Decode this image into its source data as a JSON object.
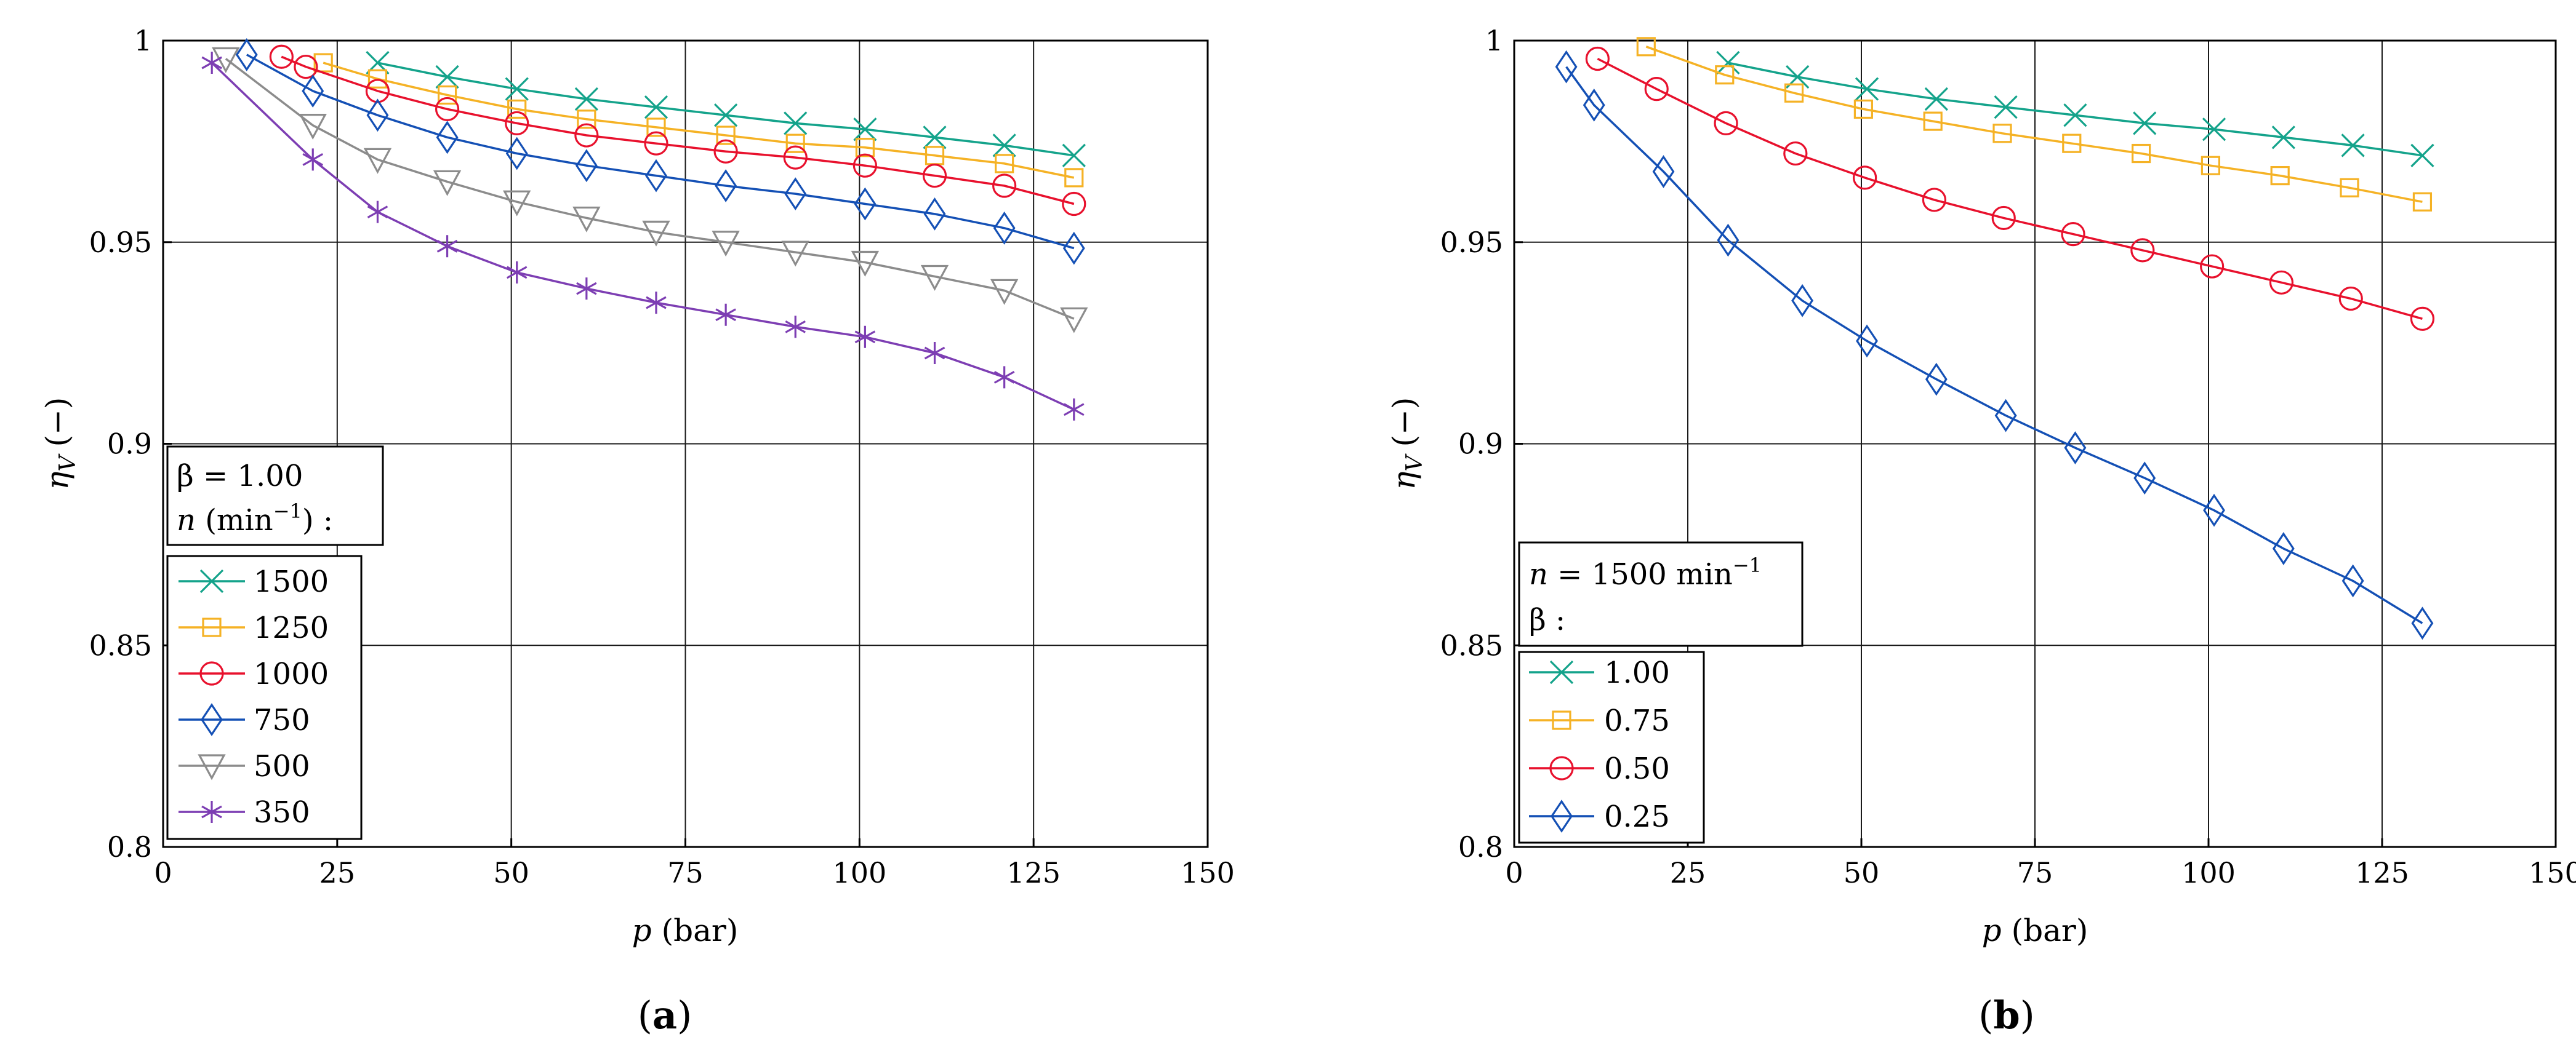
{
  "chart_data": [
    {
      "type": "line",
      "subfig_prefix": "(",
      "subfig_letter": "a",
      "subfig_suffix": ")",
      "xlabel_var": "p",
      "xlabel_unit": "(bar)",
      "ylabel_var": "η",
      "ylabel_sub": "V",
      "ylabel_unit": "(−)",
      "xlim": [
        0,
        150
      ],
      "ylim": [
        0.8,
        1.0
      ],
      "xticks": [
        0,
        25,
        50,
        75,
        100,
        125,
        150
      ],
      "xtick_labels": [
        "0",
        "25",
        "50",
        "75",
        "100",
        "125",
        "150"
      ],
      "yticks": [
        0.8,
        0.85,
        0.9,
        0.95,
        1.0
      ],
      "ytick_labels": [
        "0.8",
        "0.85",
        "0.9",
        "0.95",
        "1"
      ],
      "grid": true,
      "legend_position": "bottom-left",
      "legend_header_line1": "β = 1.00",
      "legend_header_line2_var": "n",
      "legend_header_line2_unit": "(min",
      "legend_header_line2_exp": "−1",
      "legend_header_line2_end": ") :",
      "series": [
        {
          "name": "1500",
          "color": "#14a38b",
          "marker": "x",
          "x": [
            30.8,
            40.8,
            50.8,
            60.8,
            70.8,
            80.8,
            90.8,
            100.8,
            110.8,
            120.8,
            130.8
          ],
          "y": [
            0.9945,
            0.991,
            0.988,
            0.9855,
            0.9835,
            0.9815,
            0.9795,
            0.978,
            0.976,
            0.974,
            0.9715
          ]
        },
        {
          "name": "1250",
          "color": "#f5b225",
          "marker": "square",
          "x": [
            23.0,
            30.8,
            40.8,
            50.8,
            60.8,
            70.8,
            80.8,
            90.8,
            100.8,
            110.8,
            120.8,
            130.8
          ],
          "y": [
            0.9945,
            0.9905,
            0.9865,
            0.983,
            0.9805,
            0.9785,
            0.9765,
            0.9745,
            0.9735,
            0.9715,
            0.9695,
            0.966
          ]
        },
        {
          "name": "1000",
          "color": "#e8112d",
          "marker": "circle",
          "x": [
            17.0,
            20.5,
            30.8,
            40.8,
            50.8,
            60.8,
            70.8,
            80.8,
            90.8,
            100.8,
            110.8,
            120.8,
            130.8
          ],
          "y": [
            0.996,
            0.9935,
            0.9875,
            0.983,
            0.9795,
            0.9765,
            0.9745,
            0.9725,
            0.971,
            0.969,
            0.9665,
            0.964,
            0.9595
          ]
        },
        {
          "name": "750",
          "color": "#1450b5",
          "marker": "diamond",
          "x": [
            12.0,
            21.5,
            30.8,
            40.8,
            50.8,
            60.8,
            70.8,
            80.8,
            90.8,
            100.8,
            110.8,
            120.8,
            130.8
          ],
          "y": [
            0.9965,
            0.9875,
            0.9815,
            0.976,
            0.972,
            0.969,
            0.9665,
            0.964,
            0.962,
            0.9595,
            0.957,
            0.9535,
            0.9485
          ]
        },
        {
          "name": "500",
          "color": "#8c8c8c",
          "marker": "triangle-down",
          "x": [
            9.0,
            21.5,
            30.8,
            40.8,
            50.8,
            60.8,
            70.8,
            80.8,
            90.8,
            100.8,
            110.8,
            120.8,
            130.8
          ],
          "y": [
            0.9955,
            0.979,
            0.9705,
            0.965,
            0.96,
            0.956,
            0.9525,
            0.95,
            0.9475,
            0.945,
            0.9415,
            0.938,
            0.931
          ]
        },
        {
          "name": "350",
          "color": "#7d3eb3",
          "marker": "asterisk",
          "x": [
            7.0,
            21.5,
            30.8,
            40.8,
            50.8,
            60.8,
            70.8,
            80.8,
            90.8,
            100.8,
            110.8,
            120.8,
            130.8
          ],
          "y": [
            0.9945,
            0.9705,
            0.9575,
            0.949,
            0.9425,
            0.9385,
            0.935,
            0.932,
            0.929,
            0.9265,
            0.9225,
            0.9165,
            0.9085
          ]
        }
      ]
    },
    {
      "type": "line",
      "subfig_prefix": "(",
      "subfig_letter": "b",
      "subfig_suffix": ")",
      "xlabel_var": "p",
      "xlabel_unit": "(bar)",
      "ylabel_var": "η",
      "ylabel_sub": "V",
      "ylabel_unit": "(−)",
      "xlim": [
        0,
        150
      ],
      "ylim": [
        0.8,
        1.0
      ],
      "xticks": [
        0,
        25,
        50,
        75,
        100,
        125,
        150
      ],
      "xtick_labels": [
        "0",
        "25",
        "50",
        "75",
        "100",
        "125",
        "150"
      ],
      "yticks": [
        0.8,
        0.85,
        0.9,
        0.95,
        1.0
      ],
      "ytick_labels": [
        "0.8",
        "0.85",
        "0.9",
        "0.95",
        "1"
      ],
      "grid": true,
      "legend_position": "bottom-left",
      "legend_header_line1_var": "n",
      "legend_header_line1_eq": " = 1500 min",
      "legend_header_line1_exp": "−1",
      "legend_header_line2": "β :",
      "series": [
        {
          "name": "1.00",
          "color": "#14a38b",
          "marker": "x",
          "x": [
            30.8,
            40.8,
            50.8,
            60.8,
            70.8,
            80.8,
            90.8,
            100.8,
            110.8,
            120.8,
            130.8
          ],
          "y": [
            0.9945,
            0.991,
            0.988,
            0.9855,
            0.9835,
            0.9815,
            0.9795,
            0.978,
            0.976,
            0.974,
            0.9715
          ]
        },
        {
          "name": "0.75",
          "color": "#f5b225",
          "marker": "square",
          "x": [
            19.0,
            30.3,
            40.3,
            50.3,
            60.3,
            70.3,
            80.3,
            90.3,
            100.3,
            110.3,
            120.3,
            130.8
          ],
          "y": [
            0.9985,
            0.9915,
            0.987,
            0.983,
            0.98,
            0.977,
            0.9745,
            0.972,
            0.969,
            0.9665,
            0.9635,
            0.96
          ]
        },
        {
          "name": "0.50",
          "color": "#e8112d",
          "marker": "circle",
          "x": [
            12.0,
            20.5,
            30.5,
            40.5,
            50.5,
            60.5,
            70.5,
            80.5,
            90.5,
            100.5,
            110.5,
            120.5,
            130.8
          ],
          "y": [
            0.9955,
            0.988,
            0.9795,
            0.972,
            0.966,
            0.9605,
            0.956,
            0.952,
            0.948,
            0.944,
            0.94,
            0.936,
            0.931
          ]
        },
        {
          "name": "0.25",
          "color": "#1450b5",
          "marker": "diamond",
          "x": [
            7.5,
            11.5,
            21.5,
            30.8,
            41.5,
            50.8,
            60.8,
            70.8,
            80.8,
            90.8,
            100.8,
            110.8,
            120.8,
            130.8
          ],
          "y": [
            0.9935,
            0.984,
            0.9675,
            0.9505,
            0.9355,
            0.9255,
            0.916,
            0.907,
            0.899,
            0.8915,
            0.8835,
            0.874,
            0.866,
            0.8555
          ]
        }
      ]
    }
  ]
}
